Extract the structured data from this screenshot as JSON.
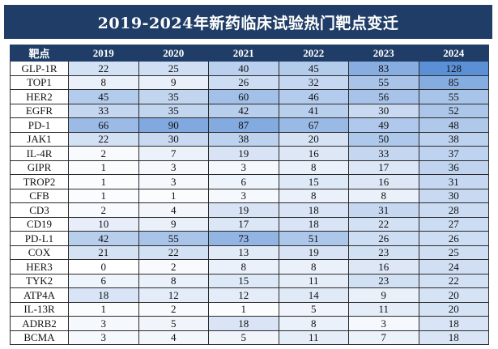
{
  "title": "2019-2024年新药临床试验热门靶点变迁",
  "colors": {
    "header_bg": "#1f3d66",
    "heat_low": "#ffffff",
    "heat_high": "#5b8fd6"
  },
  "chart_data": {
    "type": "heatmap",
    "title": "2019-2024年新药临床试验热门靶点变迁",
    "row_header": "靶点",
    "columns": [
      "2019",
      "2020",
      "2021",
      "2022",
      "2023",
      "2024"
    ],
    "rows": [
      "GLP-1R",
      "TOP1",
      "HER2",
      "EGFR",
      "PD-1",
      "JAK1",
      "IL-4R",
      "GIPR",
      "TROP2",
      "CFB",
      "CD3",
      "CD19",
      "PD-L1",
      "COX",
      "HER3",
      "TYK2",
      "ATP4A",
      "IL-13R",
      "ADRB2",
      "BCMA"
    ],
    "values": [
      [
        22,
        25,
        40,
        45,
        83,
        128
      ],
      [
        8,
        9,
        26,
        32,
        55,
        85
      ],
      [
        45,
        35,
        60,
        46,
        56,
        55
      ],
      [
        33,
        35,
        42,
        41,
        30,
        52
      ],
      [
        66,
        90,
        87,
        67,
        49,
        48
      ],
      [
        22,
        30,
        38,
        20,
        50,
        38
      ],
      [
        2,
        7,
        19,
        16,
        33,
        37
      ],
      [
        1,
        3,
        3,
        8,
        17,
        36
      ],
      [
        1,
        3,
        6,
        15,
        16,
        31
      ],
      [
        1,
        1,
        3,
        8,
        8,
        30
      ],
      [
        2,
        4,
        19,
        18,
        31,
        28
      ],
      [
        10,
        9,
        17,
        18,
        22,
        27
      ],
      [
        42,
        55,
        73,
        51,
        26,
        26
      ],
      [
        21,
        22,
        13,
        19,
        23,
        25
      ],
      [
        0,
        2,
        8,
        8,
        16,
        24
      ],
      [
        6,
        8,
        15,
        11,
        23,
        22
      ],
      [
        18,
        12,
        12,
        14,
        9,
        20
      ],
      [
        1,
        2,
        1,
        5,
        11,
        20
      ],
      [
        3,
        5,
        18,
        8,
        3,
        18
      ],
      [
        3,
        4,
        5,
        11,
        7,
        18
      ]
    ]
  }
}
